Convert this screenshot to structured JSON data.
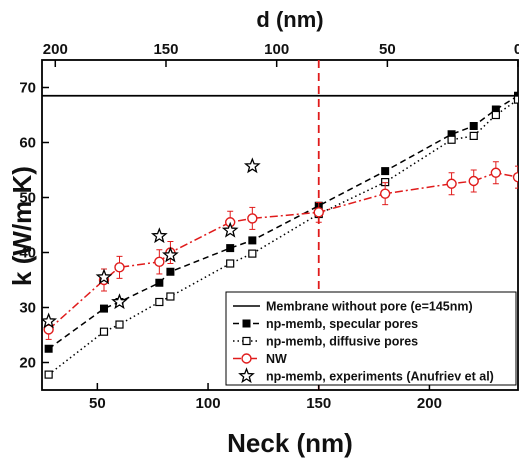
{
  "chart_data": {
    "type": "line",
    "xlabel": "Neck (nm)",
    "ylabel": "k (W/m K)",
    "x2label": "d (nm)",
    "xlim": [
      25,
      240
    ],
    "ylim": [
      15,
      75
    ],
    "x_ticks": [
      50,
      100,
      150,
      200
    ],
    "y_ticks": [
      20,
      30,
      40,
      50,
      60,
      70
    ],
    "x2_ticks": [
      {
        "label": "200",
        "neck": 31
      },
      {
        "label": "150",
        "neck": 81
      },
      {
        "label": "100",
        "neck": 131
      },
      {
        "label": "50",
        "neck": 181
      },
      {
        "label": "0",
        "neck": 240
      }
    ],
    "grid": false,
    "legend_position": "bottom-right",
    "reference_line": {
      "name": "Membrane without pore (e=145nm)",
      "y": 68.5,
      "color": "#000000"
    },
    "vertical_marker": {
      "x": 150,
      "color": "#e01b1b"
    },
    "series": [
      {
        "name": "np-memb, specular pores",
        "color": "#000000",
        "marker": "filled-square",
        "line": "dashed",
        "points": [
          [
            28,
            22.5
          ],
          [
            53,
            29.8
          ],
          [
            60,
            31.0
          ],
          [
            78,
            34.5
          ],
          [
            83,
            36.5
          ],
          [
            110,
            40.8
          ],
          [
            120,
            42.2
          ],
          [
            150,
            48.5
          ],
          [
            180,
            54.8
          ],
          [
            210,
            61.5
          ],
          [
            220,
            63.0
          ],
          [
            230,
            66.0
          ],
          [
            240,
            68.5
          ]
        ]
      },
      {
        "name": "np-memb, diffusive pores",
        "color": "#000000",
        "marker": "open-square",
        "line": "dotted",
        "points": [
          [
            28,
            17.8
          ],
          [
            53,
            25.6
          ],
          [
            60,
            26.9
          ],
          [
            78,
            31.0
          ],
          [
            83,
            32.0
          ],
          [
            110,
            38.0
          ],
          [
            120,
            39.8
          ],
          [
            150,
            47.0
          ],
          [
            180,
            52.8
          ],
          [
            210,
            60.5
          ],
          [
            220,
            61.2
          ],
          [
            230,
            65.0
          ],
          [
            240,
            67.8
          ]
        ]
      },
      {
        "name": "NW",
        "color": "#e01b1b",
        "marker": "open-circle",
        "line": "dash-dot",
        "points": [
          [
            28,
            26.0
          ],
          [
            53,
            35.0
          ],
          [
            60,
            37.3
          ],
          [
            78,
            38.3
          ],
          [
            83,
            40.0
          ],
          [
            110,
            45.5
          ],
          [
            120,
            46.2
          ],
          [
            150,
            47.3
          ],
          [
            180,
            50.7
          ],
          [
            210,
            52.5
          ],
          [
            220,
            53.0
          ],
          [
            230,
            54.5
          ],
          [
            240,
            53.7
          ]
        ],
        "error": [
          1.8,
          2.0,
          2.0,
          2.2,
          2.0,
          2.0,
          2.0,
          1.8,
          2.0,
          2.0,
          2.0,
          2.0,
          2.0
        ]
      },
      {
        "name": "np-memb, experiments (Anufriev et al)",
        "color": "#000000",
        "marker": "open-star",
        "line": "none",
        "points": [
          [
            28,
            27.5
          ],
          [
            53,
            35.5
          ],
          [
            60,
            31.0
          ],
          [
            78,
            43.0
          ],
          [
            83,
            39.5
          ],
          [
            110,
            44.0
          ],
          [
            120,
            55.7
          ]
        ]
      }
    ]
  }
}
